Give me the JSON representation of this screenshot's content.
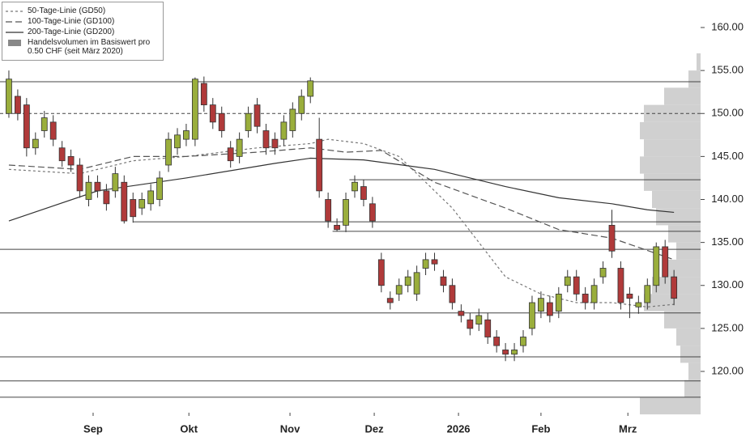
{
  "chart_data": {
    "type": "candlestick",
    "open": [
      150,
      152,
      151,
      146,
      148,
      149,
      146,
      145,
      144,
      140,
      142,
      141,
      141,
      142,
      140,
      139,
      139.5,
      140,
      144,
      146,
      147,
      147,
      153.5,
      151,
      150,
      146,
      145,
      148,
      151,
      148,
      147,
      147,
      148,
      150,
      152,
      147,
      140,
      137,
      137,
      141,
      141.5,
      139.5,
      133,
      128.5,
      129,
      130,
      129,
      132,
      133,
      131,
      130,
      127,
      126,
      125.5,
      126,
      124,
      122.5,
      122,
      123,
      125,
      127,
      128,
      127,
      130,
      131,
      129,
      128,
      131,
      137,
      132,
      129,
      127.5,
      128,
      130,
      134.5,
      131
    ],
    "high": [
      155,
      152.8,
      151.8,
      147.8,
      150.3,
      149.8,
      146.8,
      145.8,
      144.8,
      142.8,
      142.8,
      141.8,
      143.8,
      142.8,
      140.8,
      140.8,
      141.8,
      143.3,
      147.8,
      148.3,
      148.8,
      154.2,
      154.3,
      151.8,
      150.8,
      146.8,
      147.8,
      150.8,
      151.8,
      148.8,
      147.8,
      149.8,
      151.3,
      152.8,
      154.2,
      149.5,
      140.8,
      137.8,
      140.8,
      142.8,
      142.3,
      140.3,
      133.8,
      129.3,
      130.8,
      131.8,
      132.3,
      133.8,
      133.8,
      131.8,
      130.8,
      127.8,
      126.8,
      127.3,
      126.8,
      124.8,
      123.3,
      123.3,
      124.8,
      128.8,
      129.3,
      128.8,
      129.8,
      131.8,
      131.8,
      129.8,
      130.8,
      132.8,
      138.8,
      132.8,
      129.8,
      128.8,
      130.8,
      135,
      135.3,
      131.8
    ],
    "low": [
      149.5,
      149.2,
      145,
      145.2,
      147.2,
      146.2,
      143.8,
      143.2,
      140.2,
      139.2,
      140.2,
      138.7,
      140.2,
      137.2,
      137.3,
      138.2,
      138.7,
      139.2,
      143.2,
      145.2,
      146.2,
      146.2,
      150.2,
      148.2,
      147.2,
      143.7,
      144.2,
      147.2,
      147.7,
      145.2,
      145.2,
      146.2,
      147.2,
      149.2,
      151.2,
      140.2,
      136.7,
      136.3,
      136.2,
      140.2,
      139.2,
      136.7,
      129.2,
      127.2,
      128.2,
      129.2,
      128.2,
      131.2,
      131.7,
      129.2,
      127.2,
      125.7,
      124.2,
      124.7,
      123.2,
      122.2,
      121.2,
      121.2,
      122.2,
      124.2,
      126.2,
      125.7,
      126.2,
      129.2,
      128.2,
      127.2,
      127.2,
      130.2,
      133.2,
      127.2,
      126.2,
      126.7,
      127.2,
      129.2,
      130.2,
      127.7
    ],
    "close": [
      154,
      150,
      146,
      147,
      149.5,
      147,
      144.5,
      144,
      141,
      142,
      141,
      139.5,
      143,
      137.5,
      138,
      140,
      141,
      142.5,
      147,
      147.5,
      148,
      154,
      151,
      149,
      148,
      144.5,
      147,
      150,
      148.5,
      146,
      146,
      149,
      150.5,
      152,
      153.8,
      141,
      137.5,
      136.5,
      140,
      142,
      140,
      137.5,
      130,
      128,
      130,
      131,
      131.5,
      133,
      132.5,
      130,
      128,
      126.5,
      125,
      126.5,
      124,
      123,
      122,
      122.5,
      124,
      128,
      128.5,
      126.5,
      129,
      131,
      129,
      128,
      130,
      132,
      134,
      128,
      128.5,
      128,
      130,
      134.5,
      131,
      128.5
    ],
    "up_color": "#9aae3c",
    "down_color": "#b03a3a",
    "lines": [
      {
        "name": "50-Tage-Linie (GD50)",
        "dash": "3,3",
        "color": "#777",
        "x": [
          0,
          8,
          14,
          20,
          28,
          34,
          36,
          40,
          44,
          50,
          56,
          60,
          64,
          68,
          72,
          75
        ],
        "values": [
          143.5,
          143,
          144.5,
          145,
          146,
          146.5,
          147,
          146.5,
          145,
          139,
          131,
          129,
          128,
          128,
          127.5,
          127.8
        ]
      },
      {
        "name": "100-Tage-Linie (GD100)",
        "dash": "8,4",
        "color": "#555",
        "x": [
          0,
          8,
          14,
          20,
          28,
          34,
          38,
          42,
          48,
          56,
          62,
          68,
          75
        ],
        "values": [
          144,
          143.5,
          145,
          145,
          145.5,
          146,
          145.5,
          145.7,
          142,
          139,
          136.5,
          135.5,
          133
        ]
      },
      {
        "name": "200-Tage-Linie (GD200)",
        "dash": "none",
        "color": "#333",
        "x": [
          0,
          10,
          20,
          30,
          34,
          40,
          48,
          56,
          62,
          68,
          72,
          75
        ],
        "values": [
          137.5,
          141,
          142.5,
          144.2,
          144.8,
          144.6,
          143.5,
          141.5,
          140.2,
          139.5,
          138.8,
          138.5
        ]
      }
    ],
    "volume_profile": {
      "name": "Handelsvolumen im Basiswert pro 0.50 CHF (seit März 2020)",
      "color": "#d0d0d0",
      "bins": [
        115,
        117,
        119,
        121,
        123,
        125,
        127,
        129,
        131,
        133,
        135,
        137,
        139,
        141,
        143,
        145,
        147,
        149,
        151,
        153,
        155,
        157
      ],
      "values": [
        75,
        20,
        15,
        25,
        30,
        45,
        70,
        60,
        45,
        30,
        40,
        55,
        60,
        70,
        75,
        70,
        75,
        70,
        45,
        15,
        5
      ],
      "xlim": [
        0,
        100
      ]
    },
    "levels": [
      {
        "value": 153.7,
        "start": -1,
        "dash": "none"
      },
      {
        "value": 150,
        "start": -1,
        "dash": "4,3"
      },
      {
        "value": 142.3,
        "start": 38.4,
        "dash": "none"
      },
      {
        "value": 137.4,
        "start": 14,
        "dash": "none"
      },
      {
        "value": 136.3,
        "start": 36.5,
        "dash": "none"
      },
      {
        "value": 134.2,
        "start": -1,
        "dash": "none"
      },
      {
        "value": 126.8,
        "start": -1,
        "dash": "none"
      },
      {
        "value": 121.7,
        "start": -1,
        "dash": "none"
      },
      {
        "value": 118.9,
        "start": -1,
        "dash": "none"
      },
      {
        "value": 117,
        "start": -1,
        "dash": "none"
      }
    ],
    "xlim": [
      -1,
      78
    ],
    "xticks": [
      {
        "value": 9.5,
        "label": "Sep"
      },
      {
        "value": 20.3,
        "label": "Okt"
      },
      {
        "value": 31.7,
        "label": "Nov"
      },
      {
        "value": 41.2,
        "label": "Dez"
      },
      {
        "value": 50.7,
        "label": "2026"
      },
      {
        "value": 60,
        "label": "Feb"
      },
      {
        "value": 69.8,
        "label": "Mrz"
      }
    ],
    "ylim": [
      115.2,
      163.2
    ],
    "yticks": [
      {
        "value": 120,
        "label": "120.00"
      },
      {
        "value": 125,
        "label": "125.00"
      },
      {
        "value": 130,
        "label": "130.00"
      },
      {
        "value": 135,
        "label": "135.00"
      },
      {
        "value": 140,
        "label": "140.00"
      },
      {
        "value": 145,
        "label": "145.00"
      },
      {
        "value": 150,
        "label": "150.00"
      },
      {
        "value": 155,
        "label": "155.00"
      },
      {
        "value": 160,
        "label": "160.00"
      }
    ]
  }
}
